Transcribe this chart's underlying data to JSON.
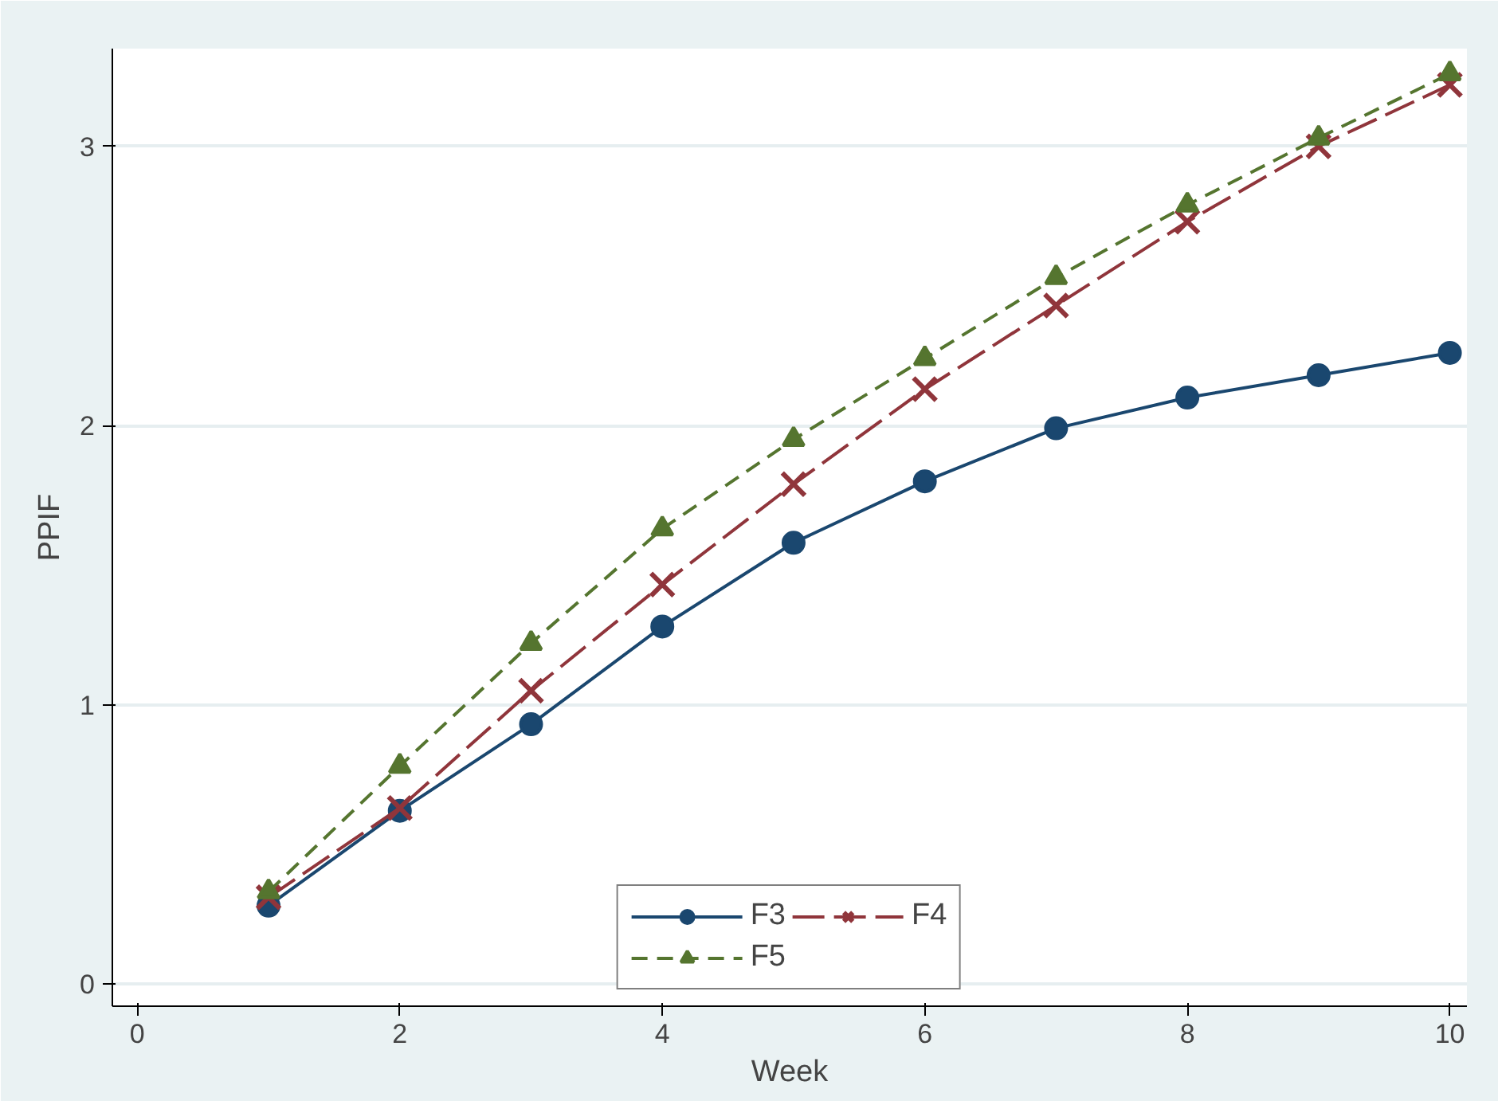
{
  "chart_data": {
    "type": "line",
    "xlabel": "Week",
    "ylabel": "PPIF",
    "x": [
      1,
      2,
      3,
      4,
      5,
      6,
      7,
      8,
      9,
      10
    ],
    "series": [
      {
        "name": "F3",
        "color": "#1a476f",
        "marker": "circle",
        "line_style": "solid",
        "values": [
          0.28,
          0.62,
          0.93,
          1.28,
          1.58,
          1.8,
          1.99,
          2.1,
          2.18,
          2.26
        ]
      },
      {
        "name": "F4",
        "color": "#90353b",
        "marker": "cross",
        "line_style": "dashed",
        "values": [
          0.31,
          0.63,
          1.05,
          1.43,
          1.79,
          2.13,
          2.43,
          2.73,
          3.0,
          3.22
        ]
      },
      {
        "name": "F5",
        "color": "#55752f",
        "marker": "triangle",
        "line_style": "dotted",
        "values": [
          0.33,
          0.78,
          1.22,
          1.63,
          1.95,
          2.24,
          2.53,
          2.79,
          3.03,
          3.26
        ]
      }
    ],
    "xlim": [
      -0.19,
      10.13
    ],
    "ylim": [
      -0.08,
      3.35
    ],
    "xticks": [
      0,
      2,
      4,
      6,
      8,
      10
    ],
    "yticks": [
      0,
      1,
      2,
      3
    ],
    "grid": "y",
    "legend": "bottom"
  }
}
